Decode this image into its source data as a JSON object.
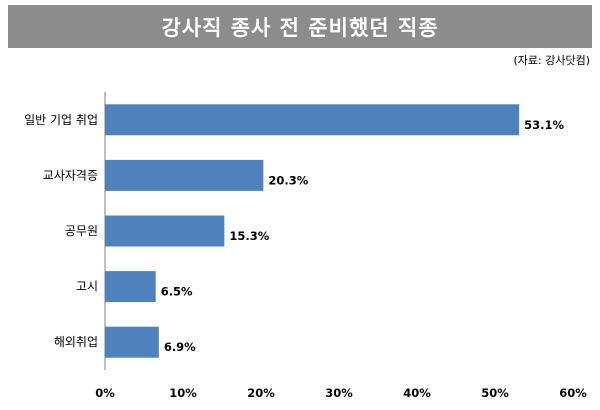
{
  "title": "강사직 종사 전 준비했던 직종",
  "source": "(자료: 강사닷컴)",
  "chart_data": {
    "type": "bar",
    "orientation": "horizontal",
    "categories": [
      "일반 기업 취업",
      "교사자격증",
      "공무원",
      "고시",
      "해외취업"
    ],
    "values": [
      53.1,
      20.3,
      15.3,
      6.5,
      6.9
    ],
    "value_labels": [
      "53.1%",
      "20.3%",
      "15.3%",
      "6.5%",
      "6.9%"
    ],
    "xlim": [
      0,
      60
    ],
    "xticks": [
      0,
      10,
      20,
      30,
      40,
      50,
      60
    ],
    "xtick_labels": [
      "0%",
      "10%",
      "20%",
      "30%",
      "40%",
      "50%",
      "60%"
    ],
    "bar_color": "#4f81bd",
    "grid": false
  }
}
